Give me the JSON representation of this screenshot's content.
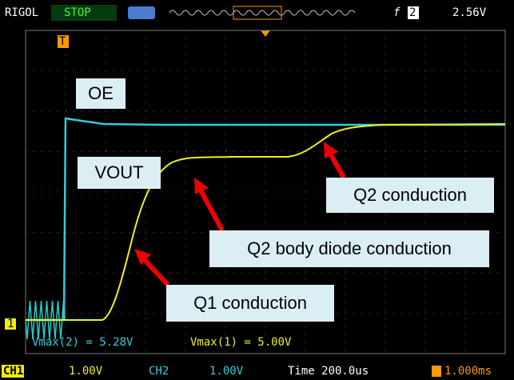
{
  "header": {
    "brand": "RIGOL",
    "status": "STOP",
    "trigger_source": "2",
    "trigger_level": "2.56V"
  },
  "markers": {
    "trigger": "T",
    "channel": "1"
  },
  "measurements": [
    "Vmax(2) = 5.28V",
    "Vmax(1) = 5.00V"
  ],
  "annotations": [
    "OE",
    "VOUT",
    "Q2 conduction",
    "Q2 body diode conduction",
    "Q1 conduction"
  ],
  "footer": {
    "ch1_label": "CH1",
    "ch1_scale": "1.00V",
    "ch2_label": "CH2",
    "ch2_scale": "1.00V",
    "time": "Time 200.0us",
    "trigger_pos": "1.000ms"
  }
}
